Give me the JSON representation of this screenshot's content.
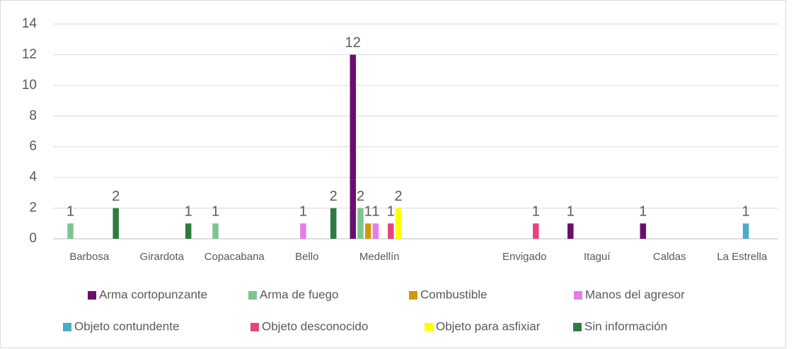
{
  "chart_data": {
    "type": "bar",
    "categories": [
      "Barbosa",
      "Girardota",
      "Copacabana",
      "Bello",
      "Medellín",
      null,
      "Envigado",
      "Itaguí",
      "Caldas",
      "La Estrella"
    ],
    "series": [
      {
        "name": "Arma cortopunzante",
        "color": "#6a0f70",
        "values": [
          null,
          null,
          null,
          null,
          12,
          null,
          null,
          1,
          1,
          null
        ]
      },
      {
        "name": "Arma de fuego",
        "color": "#7fc48f",
        "values": [
          1,
          null,
          1,
          null,
          2,
          null,
          null,
          null,
          null,
          null
        ]
      },
      {
        "name": "Combustible",
        "color": "#d19a06",
        "values": [
          null,
          null,
          null,
          null,
          1,
          null,
          null,
          null,
          null,
          null
        ]
      },
      {
        "name": "Manos del agresor",
        "color": "#e47ee8",
        "values": [
          null,
          null,
          null,
          1,
          1,
          null,
          null,
          null,
          null,
          null
        ]
      },
      {
        "name": "Objeto contundente",
        "color": "#4bacc6",
        "values": [
          null,
          null,
          null,
          null,
          null,
          null,
          null,
          null,
          null,
          1
        ]
      },
      {
        "name": "Objeto desconocido",
        "color": "#e4457c",
        "values": [
          null,
          null,
          null,
          null,
          1,
          null,
          1,
          null,
          null,
          null
        ]
      },
      {
        "name": "Objeto para asfixiar",
        "color": "#ffff00",
        "values": [
          null,
          null,
          null,
          null,
          2,
          null,
          null,
          null,
          null,
          null
        ]
      },
      {
        "name": "Sin información",
        "color": "#2e7b41",
        "values": [
          2,
          1,
          null,
          2,
          null,
          null,
          null,
          null,
          null,
          null
        ]
      }
    ],
    "ylim": [
      0,
      14
    ],
    "yticks": [
      0,
      2,
      4,
      6,
      8,
      10,
      12,
      14
    ],
    "grid": true,
    "legend": "bottom",
    "data_labels": true
  }
}
